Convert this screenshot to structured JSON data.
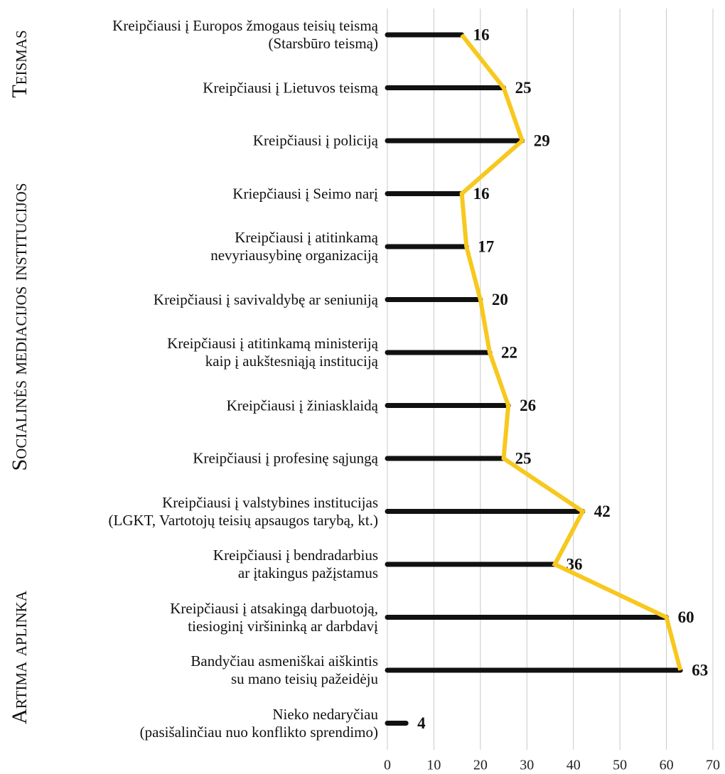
{
  "chart_data": {
    "type": "bar",
    "groups": [
      "Teismas",
      "Socialinės mediacijos institucijos",
      "Artima aplinka"
    ],
    "categories": [
      "Kreipčiausi į Europos žmogaus teisių teismą\n(Starsbūro teismą)",
      "Kreipčiausi į Lietuvos teismą",
      "Kreipčiausi į policiją",
      "Kriepčiausi į Seimo narį",
      "Kreipčiausi į atitinkamą\nnevyriausybinę organizaciją",
      "Kreipčiausi į savivaldybę ar seniuniją",
      "Kreipčiausi į atitinkamą ministeriją\nkaip į aukštesniąją instituciją",
      "Kreipčiausi į žiniasklaidą",
      "Kreipčiausi į profesinę sąjungą",
      "Kreipčiausi į valstybines institucijas\n(LGKT, Vartotojų teisių apsaugos tarybą, kt.)",
      "Kreipčiausi į bendradarbius\nar įtakingus pažįstamus",
      "Kreipčiausi į atsakingą darbuotoją,\ntiesioginį viršininką ar darbdavį",
      "Bandyčiau asmeniškai aiškintis\nsu mano teisių pažeidėju",
      "Nieko nedaryčiau\n(pasišalinčiau nuo konflikto sprendimo)"
    ],
    "series": [
      {
        "kind": "bar",
        "color": "#111111",
        "values": [
          16,
          25,
          29,
          16,
          17,
          20,
          22,
          26,
          25,
          42,
          36,
          60,
          63,
          4
        ]
      },
      {
        "kind": "line",
        "color": "#f7c81e",
        "values": [
          16,
          25,
          29,
          16,
          17,
          20,
          22,
          26,
          25,
          42,
          36,
          60,
          63,
          null
        ]
      }
    ],
    "xlim": [
      0,
      70
    ],
    "xticks": [
      0,
      10,
      20,
      30,
      40,
      50,
      60,
      70
    ],
    "grid": true
  }
}
